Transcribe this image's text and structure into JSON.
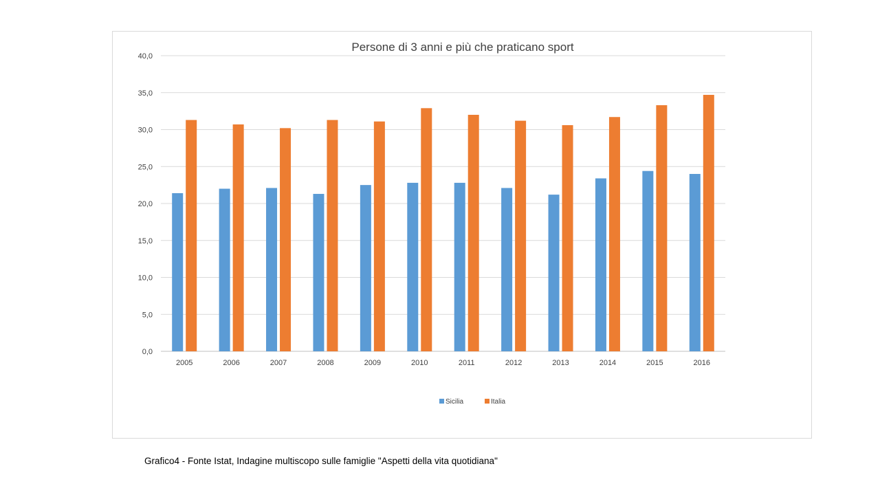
{
  "chart_data": {
    "type": "bar",
    "title": "Persone di 3 anni e più che praticano sport",
    "categories": [
      "2005",
      "2006",
      "2007",
      "2008",
      "2009",
      "2010",
      "2011",
      "2012",
      "2013",
      "2014",
      "2015",
      "2016"
    ],
    "series": [
      {
        "name": "Sicilia",
        "color": "#5b9bd5",
        "values": [
          21.4,
          22.0,
          22.1,
          21.3,
          22.5,
          22.8,
          22.8,
          22.1,
          21.2,
          23.4,
          24.4,
          24.0
        ]
      },
      {
        "name": "Italia",
        "color": "#ed7d31",
        "values": [
          31.3,
          30.7,
          30.2,
          31.3,
          31.1,
          32.9,
          32.0,
          31.2,
          30.6,
          31.7,
          33.3,
          34.7
        ]
      }
    ],
    "ylim": [
      0,
      40
    ],
    "yticks": [
      "0,0",
      "5,0",
      "10,0",
      "15,0",
      "20,0",
      "25,0",
      "30,0",
      "35,0",
      "40,0"
    ],
    "grid": true,
    "legend": "bottom"
  },
  "caption": "Grafico4 - Fonte Istat, Indagine multiscopo sulle famiglie \"Aspetti della vita quotidiana\""
}
